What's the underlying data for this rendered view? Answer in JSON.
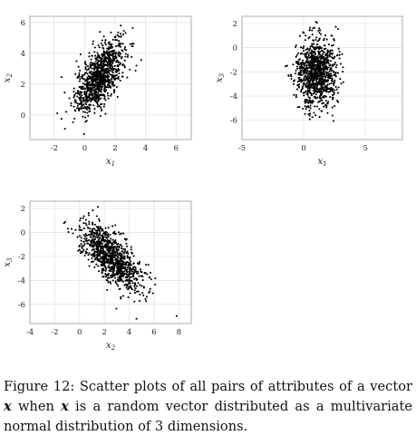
{
  "chart_data": [
    {
      "type": "scatter",
      "xlabel": "x1",
      "ylabel": "x2",
      "xlim": [
        -3.6,
        7.0
      ],
      "ylim": [
        -1.6,
        6.4
      ],
      "xticks": [
        -2,
        0,
        2,
        4,
        6
      ],
      "yticks": [
        0,
        2,
        4,
        6
      ],
      "grid": true,
      "n_points": 1000,
      "distribution": {
        "mean": [
          1.0,
          2.5
        ],
        "std": [
          0.8,
          1.2
        ],
        "corr": 0.65
      }
    },
    {
      "type": "scatter",
      "xlabel": "x1",
      "ylabel": "x3",
      "xlim": [
        -5.0,
        8.0
      ],
      "ylim": [
        -7.6,
        2.6
      ],
      "xticks": [
        -5,
        0,
        5
      ],
      "yticks": [
        2,
        0,
        -2,
        -4,
        -6
      ],
      "grid": true,
      "n_points": 1000,
      "distribution": {
        "mean": [
          1.0,
          -2.0
        ],
        "std": [
          0.8,
          1.4
        ],
        "corr": 0.0
      }
    },
    {
      "type": "scatter",
      "xlabel": "x2",
      "ylabel": "x3",
      "xlim": [
        -4.0,
        9.0
      ],
      "ylim": [
        -7.6,
        2.6
      ],
      "xticks": [
        -4,
        -2,
        0,
        2,
        4,
        6,
        8
      ],
      "yticks": [
        2,
        0,
        -2,
        -4,
        -6
      ],
      "grid": true,
      "n_points": 1000,
      "distribution": {
        "mean": [
          2.5,
          -2.0
        ],
        "std": [
          1.2,
          1.4
        ],
        "corr": -0.7
      }
    }
  ],
  "caption": {
    "lead": "Figure 12: Scatter plots of all pairs of attributes of a vector ",
    "var1": "x",
    "mid": " when ",
    "var2": "x",
    "tail": " is a random vector distributed as a multivariate normal distribution of 3 dimensions."
  }
}
